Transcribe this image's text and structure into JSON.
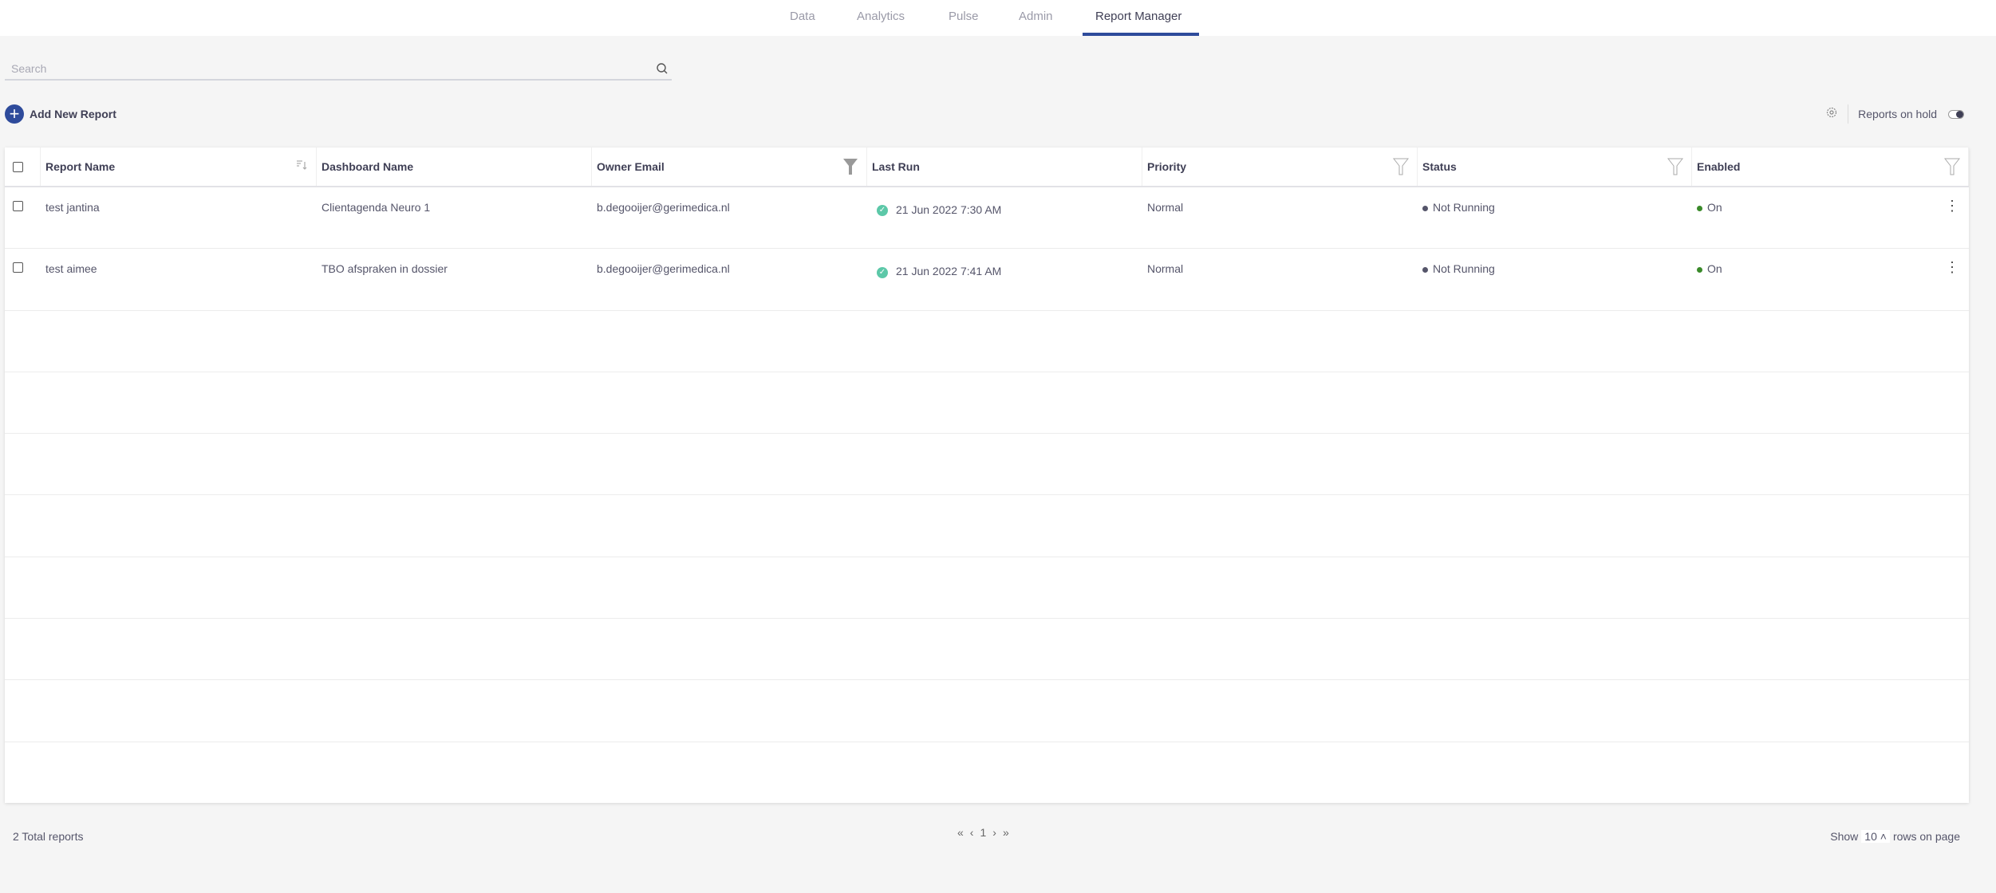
{
  "nav": {
    "tabs": [
      {
        "label": "Data"
      },
      {
        "label": "Analytics"
      },
      {
        "label": "Pulse"
      },
      {
        "label": "Admin"
      },
      {
        "label": "Report Manager",
        "active": true
      }
    ]
  },
  "search": {
    "placeholder": "Search",
    "value": ""
  },
  "toolbar": {
    "add_label": "Add New Report",
    "reports_on_hold_label": "Reports on hold",
    "reports_on_hold": true
  },
  "table": {
    "headers": [
      "Report Name",
      "Dashboard Name",
      "Owner Email",
      "Last Run",
      "Priority",
      "Status",
      "Enabled"
    ],
    "rows": [
      {
        "report_name": "test jantina",
        "dashboard_name": "Clientagenda Neuro 1",
        "owner_email": "b.degooijer@gerimedica.nl",
        "last_run": "21 Jun 2022 7:30 AM",
        "priority": "Normal",
        "status": "Not Running",
        "enabled": "On"
      },
      {
        "report_name": "test aimee",
        "dashboard_name": "TBO afspraken in dossier",
        "owner_email": "b.degooijer@gerimedica.nl",
        "last_run": "21 Jun 2022 7:41 AM",
        "priority": "Normal",
        "status": "Not Running",
        "enabled": "On"
      }
    ]
  },
  "footer": {
    "total": "2 Total reports",
    "page": "1",
    "first": "«",
    "prev": "‹",
    "next": "›",
    "last": "»",
    "show": "Show",
    "rows_per_page": "10",
    "rows_on_page": "rows on page"
  },
  "colors": {
    "accent": "#2e4b9b",
    "success": "#5cc8a8",
    "enabled_dot": "#3a8a2a",
    "status_dot": "#55556a"
  }
}
